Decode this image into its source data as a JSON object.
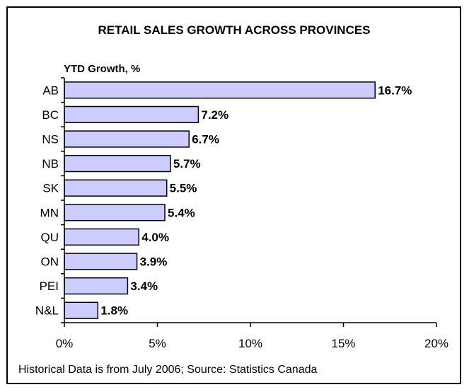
{
  "chart_data": {
    "type": "bar",
    "orientation": "horizontal",
    "title": "RETAIL SALES GROWTH ACROSS PROVINCES",
    "ylabel": "YTD Growth, %",
    "categories": [
      "AB",
      "BC",
      "NS",
      "NB",
      "SK",
      "MN",
      "QU",
      "ON",
      "PEI",
      "N&L"
    ],
    "values": [
      16.7,
      7.2,
      6.7,
      5.7,
      5.5,
      5.4,
      4.0,
      3.9,
      3.4,
      1.8
    ],
    "data_labels": [
      "16.7%",
      "7.2%",
      "6.7%",
      "5.7%",
      "5.5%",
      "5.4%",
      "4.0%",
      "3.9%",
      "3.4%",
      "1.8%"
    ],
    "xlim": [
      0,
      20
    ],
    "xticks": [
      0,
      5,
      10,
      15,
      20
    ],
    "xtick_labels": [
      "0%",
      "5%",
      "10%",
      "15%",
      "20%"
    ],
    "grid": false,
    "bar_color": "#ccccff",
    "footnote": "Historical Data is from July 2006; Source: Statistics Canada"
  }
}
